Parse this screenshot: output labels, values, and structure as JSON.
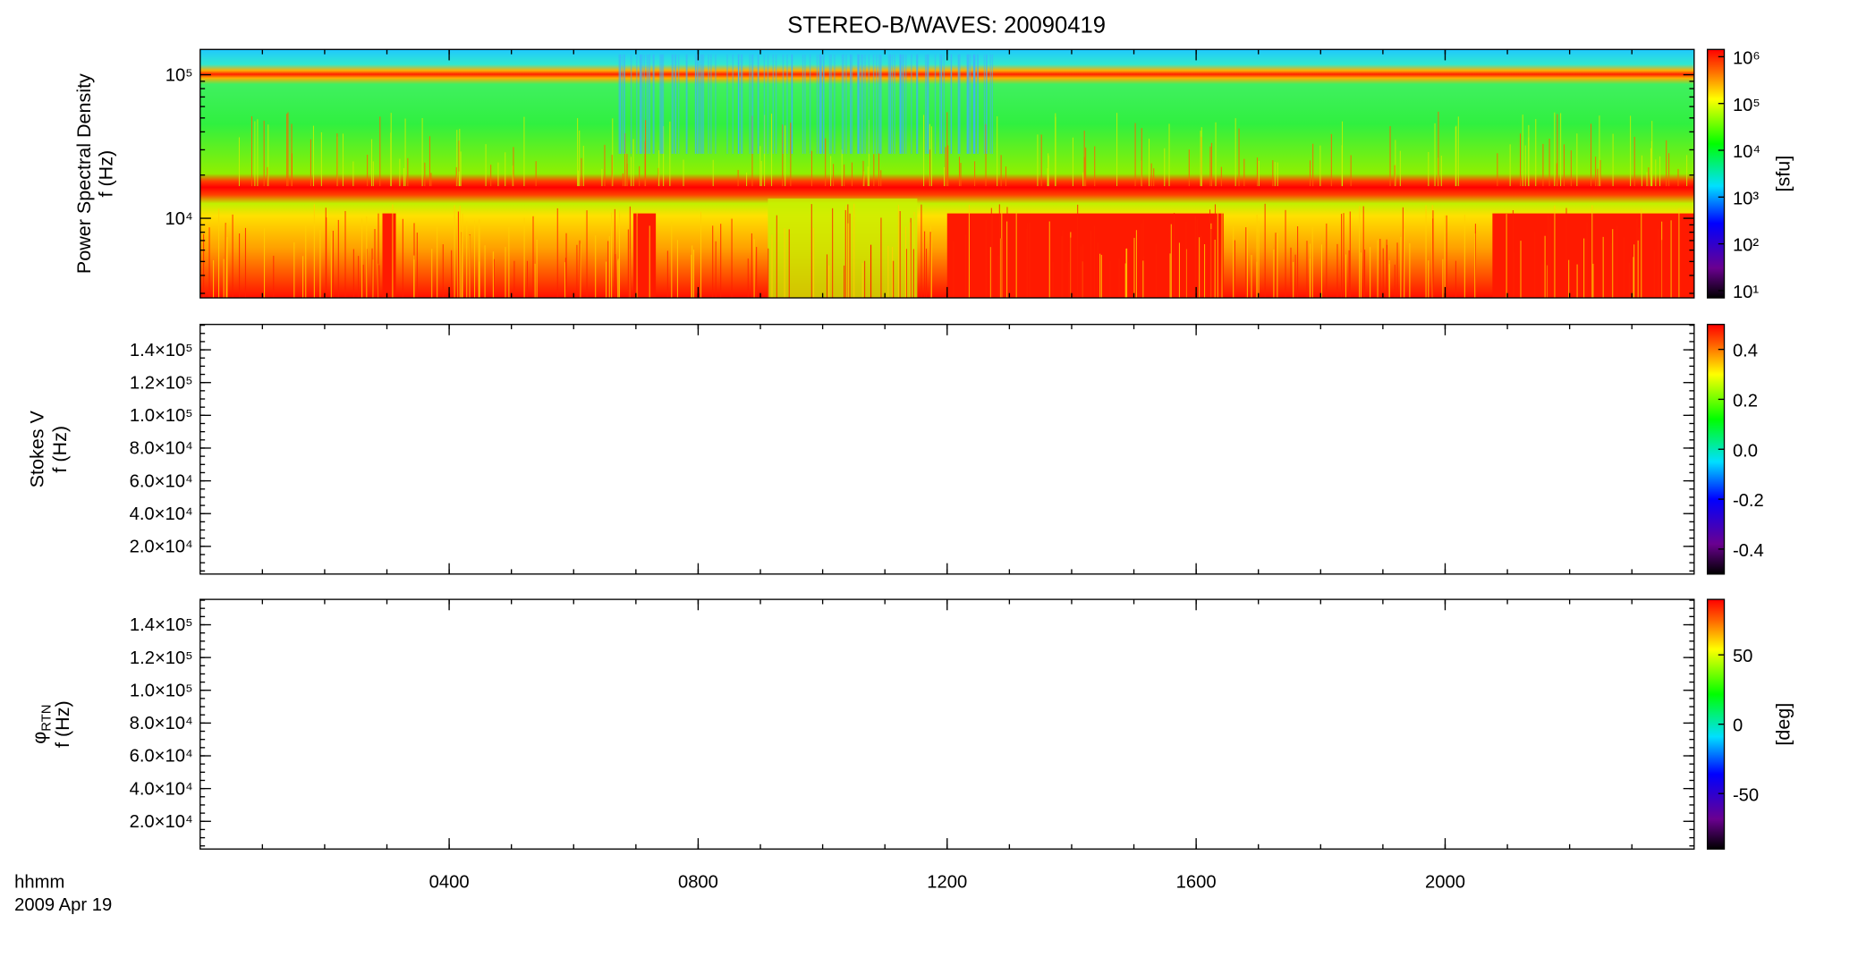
{
  "chart_data": [
    {
      "type": "heatmap",
      "title": "STEREO-B/WAVES: 20090419",
      "ylabel": [
        "Power Spectral Density",
        "f (Hz)"
      ],
      "yscale": "log",
      "ylim": [
        2790,
        150000
      ],
      "yticks": [
        {
          "value": 10000,
          "label": "10⁴"
        },
        {
          "value": 100000,
          "label": "10⁵"
        }
      ],
      "cscale": "log",
      "clim": [
        7,
        1430000
      ],
      "cticks": [
        {
          "value": 10,
          "label": "10¹"
        },
        {
          "value": 100,
          "label": "10²"
        },
        {
          "value": 1000,
          "label": "10³"
        },
        {
          "value": 10000,
          "label": "10⁴"
        },
        {
          "value": 100000,
          "label": "10⁵"
        },
        {
          "value": 1000000,
          "label": "10⁶"
        }
      ],
      "clabel": "[sfu]"
    },
    {
      "type": "heatmap",
      "ylabel": [
        "Stokes V",
        "f (Hz)"
      ],
      "yscale": "linear",
      "ylim": [
        3100,
        155500
      ],
      "yticks": [
        {
          "value": 20000,
          "label": "2.0×10⁴"
        },
        {
          "value": 40000,
          "label": "4.0×10⁴"
        },
        {
          "value": 60000,
          "label": "6.0×10⁴"
        },
        {
          "value": 80000,
          "label": "8.0×10⁴"
        },
        {
          "value": 100000,
          "label": "1.0×10⁵"
        },
        {
          "value": 120000,
          "label": "1.2×10⁵"
        },
        {
          "value": 140000,
          "label": "1.4×10⁵"
        }
      ],
      "cscale": "linear",
      "clim": [
        -0.5,
        0.5
      ],
      "cticks": [
        -0.4,
        -0.2,
        {
          "value": 0,
          "label": "0.0"
        },
        0.2,
        0.4
      ]
    },
    {
      "type": "heatmap",
      "ylabel": [
        "φ",
        "f (Hz)"
      ],
      "ylabel_sub": "RTN",
      "yscale": "linear",
      "ylim": [
        3100,
        155500
      ],
      "yticks": [
        {
          "value": 20000,
          "label": "2.0×10⁴"
        },
        {
          "value": 40000,
          "label": "4.0×10⁴"
        },
        {
          "value": 60000,
          "label": "6.0×10⁴"
        },
        {
          "value": 80000,
          "label": "8.0×10⁴"
        },
        {
          "value": 100000,
          "label": "1.0×10⁵"
        },
        {
          "value": 120000,
          "label": "1.2×10⁵"
        },
        {
          "value": 140000,
          "label": "1.4×10⁵"
        }
      ],
      "cscale": "linear",
      "clim": [
        -90,
        90
      ],
      "cticks": [
        -50,
        0,
        50
      ],
      "clabel": "[deg]",
      "xlim": [
        0,
        24
      ],
      "xticks": [
        {
          "value": 4,
          "label": "0400"
        },
        {
          "value": 8,
          "label": "0800"
        },
        {
          "value": 12,
          "label": "1200"
        },
        {
          "value": 16,
          "label": "1600"
        },
        {
          "value": 20,
          "label": "2000"
        }
      ],
      "xlabel": [
        "hhmm",
        "2009 Apr 19"
      ]
    }
  ]
}
